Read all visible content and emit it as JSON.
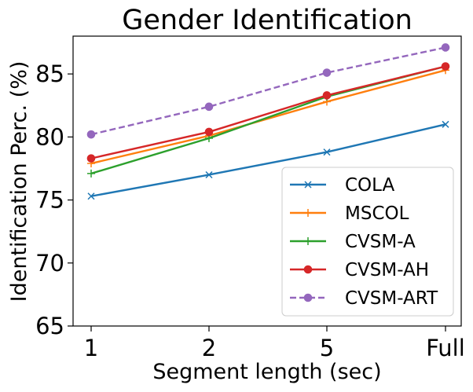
{
  "chart_data": {
    "type": "line",
    "title": "Gender Identification",
    "xlabel": "Segment length (sec)",
    "ylabel": "Identification Perc. (%)",
    "categories": [
      "1",
      "2",
      "5",
      "Full"
    ],
    "ylim": [
      65,
      88
    ],
    "yticks": [
      65,
      70,
      75,
      80,
      85
    ],
    "legend_position": "lower-right",
    "series": [
      {
        "name": "COLA",
        "values": [
          75.3,
          77.0,
          78.8,
          81.0
        ],
        "color": "#1f77b4",
        "marker": "x",
        "dashed": false
      },
      {
        "name": "MSCOL",
        "values": [
          77.9,
          80.1,
          82.8,
          85.3
        ],
        "color": "#ff7f0e",
        "marker": "plus",
        "dashed": false
      },
      {
        "name": "CVSM-A",
        "values": [
          77.1,
          79.9,
          83.2,
          85.6
        ],
        "color": "#2ca02c",
        "marker": "plus",
        "dashed": false
      },
      {
        "name": "CVSM-AH",
        "values": [
          78.3,
          80.4,
          83.3,
          85.6
        ],
        "color": "#d62728",
        "marker": "circle",
        "dashed": false
      },
      {
        "name": "CVSM-ART",
        "values": [
          80.2,
          82.4,
          85.1,
          87.1
        ],
        "color": "#9467bd",
        "marker": "circle",
        "dashed": true
      }
    ]
  }
}
